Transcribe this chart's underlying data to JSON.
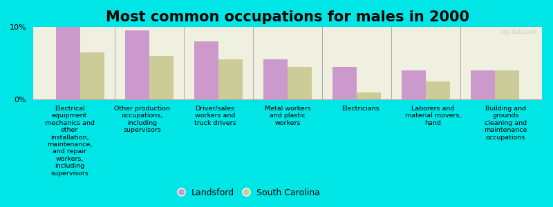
{
  "title": "Most common occupations for males in 2000",
  "categories": [
    "Electrical\nequipment\nmechanics and\nother\ninstallation,\nmaintenance,\nand repair\nworkers,\nincluding\nsupervisors",
    "Other production\noccupations,\nincluding\nsupervisors",
    "Driver/sales\nworkers and\ntruck drivers",
    "Metal workers\nand plastic\nworkers",
    "Electricians",
    "Laborers and\nmaterial movers,\nhand",
    "Building and\ngrounds\ncleaning and\nmaintenance\noccupations"
  ],
  "landsford_values": [
    10.0,
    9.5,
    8.0,
    5.5,
    4.5,
    4.0,
    4.0
  ],
  "sc_values": [
    6.5,
    6.0,
    5.5,
    4.5,
    1.0,
    2.5,
    4.0
  ],
  "landsford_color": "#cc99cc",
  "sc_color": "#cccc99",
  "background_color": "#00e5e5",
  "plot_background": "#f0f0e0",
  "ylim": [
    0,
    10
  ],
  "ytick_labels": [
    "0%",
    "10%"
  ],
  "legend_labels": [
    "Landsford",
    "South Carolina"
  ],
  "bar_width": 0.35,
  "title_fontsize": 15,
  "tick_fontsize": 8,
  "label_fontsize": 6.8,
  "legend_fontsize": 9
}
